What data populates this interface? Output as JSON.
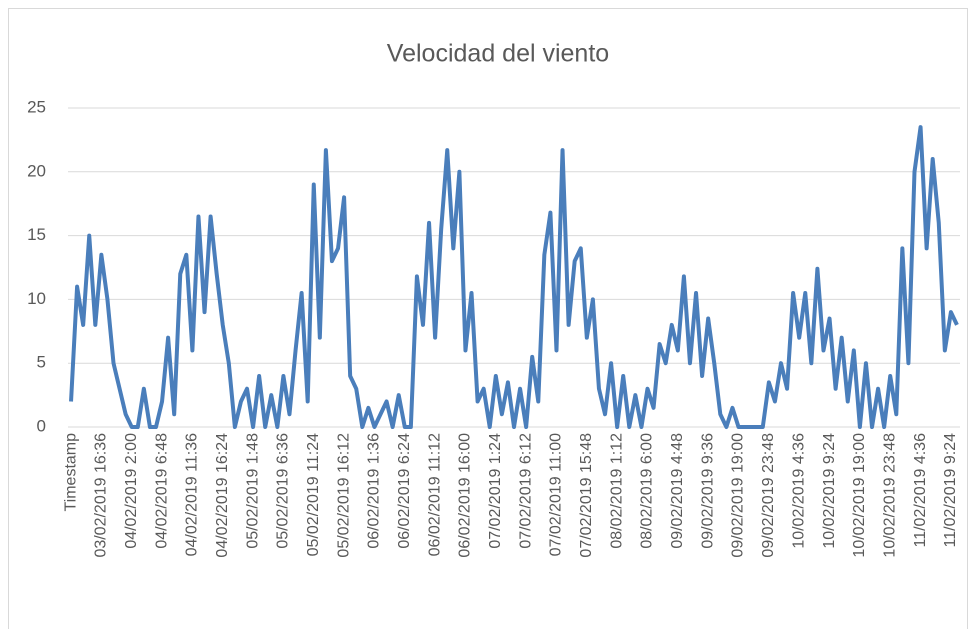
{
  "chart_data": {
    "type": "line",
    "title": "Velocidad del viento",
    "categories": [
      "Timestamp",
      null,
      null,
      null,
      null,
      "03/02/2019 16:36",
      null,
      null,
      null,
      null,
      "04/02/2019 2:00",
      null,
      null,
      null,
      null,
      "04/02/2019 6:48",
      null,
      null,
      null,
      null,
      "04/02/2019 11:36",
      null,
      null,
      null,
      null,
      "04/02/2019 16:24",
      null,
      null,
      null,
      null,
      "05/02/2019 1:48",
      null,
      null,
      null,
      null,
      "05/02/2019 6:36",
      null,
      null,
      null,
      null,
      "05/02/2019 11:24",
      null,
      null,
      null,
      null,
      "05/02/2019 16:12",
      null,
      null,
      null,
      null,
      "06/02/2019 1:36",
      null,
      null,
      null,
      null,
      "06/02/2019 6:24",
      null,
      null,
      null,
      null,
      "06/02/2019 11:12",
      null,
      null,
      null,
      null,
      "06/02/2019 16:00",
      null,
      null,
      null,
      null,
      "07/02/2019 1:24",
      null,
      null,
      null,
      null,
      "07/02/2019 6:12",
      null,
      null,
      null,
      null,
      "07/02/2019 11:00",
      null,
      null,
      null,
      null,
      "07/02/2019 15:48",
      null,
      null,
      null,
      null,
      "08/02/2019 1:12",
      null,
      null,
      null,
      null,
      "08/02/2019 6:00",
      null,
      null,
      null,
      null,
      "09/02/2019 4:48",
      null,
      null,
      null,
      null,
      "09/02/2019 9:36",
      null,
      null,
      null,
      null,
      "09/02/2019 19:00",
      null,
      null,
      null,
      null,
      "09/02/2019 23:48",
      null,
      null,
      null,
      null,
      "10/02/2019 4:36",
      null,
      null,
      null,
      null,
      "10/02/2019 9:24",
      null,
      null,
      null,
      null,
      "10/02/2019 19:00",
      null,
      null,
      null,
      null,
      "10/02/2019 23:48",
      null,
      null,
      null,
      null,
      "11/02/2019 4:36",
      null,
      null,
      null,
      null,
      "11/02/2019 9:24",
      null
    ],
    "values": [
      2,
      11,
      8,
      15,
      8,
      13.5,
      10,
      5,
      3,
      1,
      0,
      0,
      3,
      0,
      0,
      2,
      7,
      1,
      12,
      13.5,
      6,
      16.5,
      9,
      16.5,
      12,
      8,
      5,
      0,
      2,
      3,
      0,
      4,
      0,
      2.5,
      0,
      4,
      1,
      6,
      10.5,
      2,
      19,
      7,
      21.7,
      13,
      14,
      18,
      4,
      3,
      0,
      1.5,
      0,
      1,
      2,
      0,
      2.5,
      0,
      0,
      11.8,
      8,
      16,
      7,
      15.5,
      21.7,
      14,
      20,
      6,
      10.5,
      2,
      3,
      0,
      4,
      1,
      3.5,
      0,
      3,
      0,
      5.5,
      2,
      13.5,
      16.8,
      6,
      21.7,
      8,
      13,
      14,
      7,
      10,
      3,
      1,
      5,
      0,
      4,
      0,
      2.5,
      0,
      3,
      1.5,
      6.5,
      5,
      8,
      6,
      11.8,
      5,
      10.5,
      4,
      8.5,
      5,
      1,
      0,
      1.5,
      0,
      0,
      0,
      0,
      0,
      3.5,
      2,
      5,
      3,
      10.5,
      7,
      10.5,
      5,
      12.4,
      6,
      8.5,
      3,
      7,
      2,
      6,
      0,
      5,
      0,
      3,
      0,
      4,
      1,
      14,
      5,
      20,
      23.5,
      14,
      21,
      16,
      6,
      9,
      8
    ],
    "color": "#4a7ebb",
    "ylim": [
      0,
      25
    ],
    "yticks": [
      0,
      5,
      10,
      15,
      20,
      25
    ],
    "grid": true
  }
}
